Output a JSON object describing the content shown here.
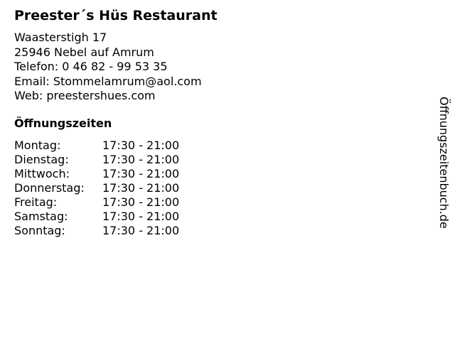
{
  "title": "Preester´s Hüs Restaurant",
  "address": [
    "Waasterstigh 17",
    "25946 Nebel auf Amrum",
    "Telefon: 0 46 82 - 99 53 35",
    "Email: Stommelamrum@aol.com",
    "Web: preestershues.com"
  ],
  "hours_heading": "Öffnungszeiten",
  "hours": [
    {
      "day": "Montag:",
      "time": "17:30 - 21:00"
    },
    {
      "day": "Dienstag:",
      "time": "17:30 - 21:00"
    },
    {
      "day": "Mittwoch:",
      "time": "17:30 - 21:00"
    },
    {
      "day": "Donnerstag:",
      "time": "17:30 - 21:00"
    },
    {
      "day": "Freitag:",
      "time": "17:30 - 21:00"
    },
    {
      "day": "Samstag:",
      "time": "17:30 - 21:00"
    },
    {
      "day": "Sonntag:",
      "time": "17:30 - 21:00"
    }
  ],
  "watermark": "Öffnungszeitenbuch.de"
}
